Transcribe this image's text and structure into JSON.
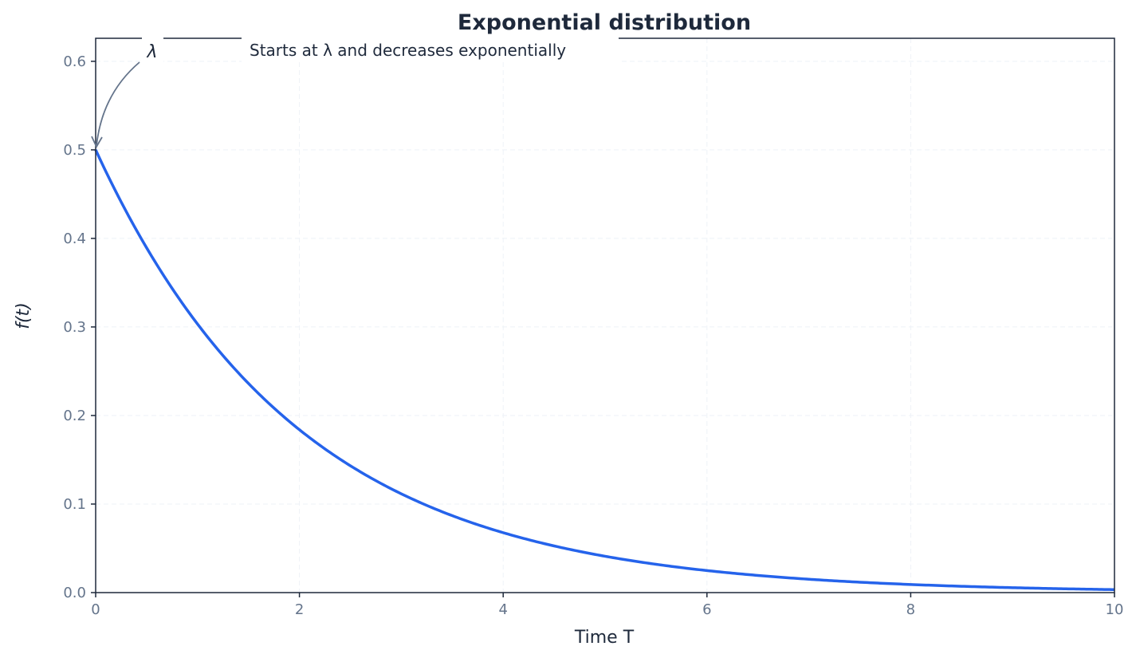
{
  "chart_data": {
    "type": "line",
    "title": "Exponential distribution",
    "xlabel": "Time T",
    "ylabel": "f(t)",
    "xlim": [
      0,
      10
    ],
    "ylim": [
      0,
      0.626
    ],
    "xticks": [
      "0",
      "2",
      "4",
      "6",
      "8",
      "10"
    ],
    "yticks": [
      "0.0",
      "0.1",
      "0.2",
      "0.3",
      "0.4",
      "0.5",
      "0.6"
    ],
    "grid": true,
    "series": [
      {
        "function": "0.5*exp(-0.5*t)",
        "lambda": 0.5,
        "color": "#2563eb",
        "x": [
          0,
          1,
          2,
          3,
          4,
          5,
          6,
          7,
          8,
          9,
          10
        ],
        "y": [
          0.5,
          0.303,
          0.184,
          0.112,
          0.068,
          0.041,
          0.025,
          0.015,
          0.009,
          0.006,
          0.003
        ]
      }
    ],
    "annotations": [
      {
        "text": "λ",
        "x": 0,
        "y": 0.5,
        "arrow": true
      },
      {
        "text": "Starts at λ and decreases exponentially"
      }
    ],
    "colors": {
      "line": "#2563eb",
      "text": "#1e293b",
      "tick": "#64748b",
      "arrow": "#64748b"
    }
  }
}
